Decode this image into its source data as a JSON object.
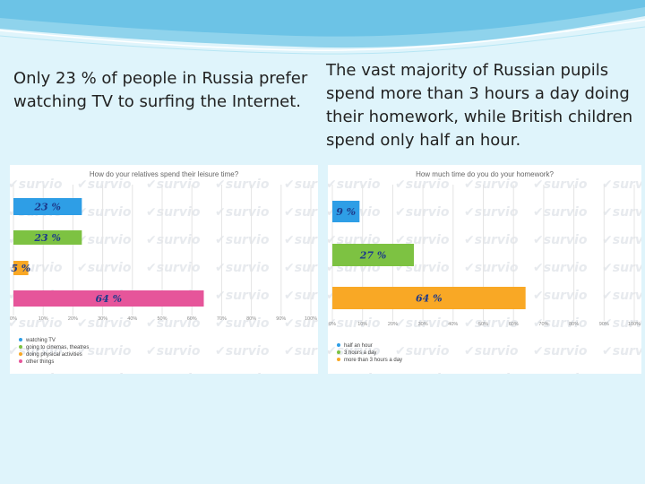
{
  "captions": {
    "left": "Only 23 % of people in Russia prefer watching TV to surfing the Internet.",
    "right": "The vast majority of Russian pupils spend more than 3 hours a day doing their homework, while British children spend only half an hour."
  },
  "watermark": "survio",
  "colors": {
    "blue": "#2e9ee6",
    "green": "#7dc242",
    "orange": "#f9a825",
    "pink": "#e6559a"
  },
  "chart_data": [
    {
      "type": "bar",
      "orientation": "horizontal",
      "title": "How do your relatives spend their leisure time?",
      "categories": [
        "watching TV",
        "going to cinemas, theatres",
        "doing physical activities",
        "other things"
      ],
      "values": [
        23,
        23,
        5,
        64
      ],
      "value_labels": [
        "23 %",
        "23 %",
        "5 %",
        "64 %"
      ],
      "colors": [
        "#2e9ee6",
        "#7dc242",
        "#f9a825",
        "#e6559a"
      ],
      "xlim": [
        0,
        100
      ],
      "xticks": [
        "0%",
        "10%",
        "20%",
        "30%",
        "40%",
        "50%",
        "60%",
        "70%",
        "80%",
        "90%",
        "100%"
      ],
      "grid": true,
      "legend": "bottom-left"
    },
    {
      "type": "bar",
      "orientation": "horizontal",
      "title": "How much time do you do your homework?",
      "categories": [
        "half an hour",
        "3 hours a day",
        "more than 3 hours a day"
      ],
      "values": [
        9,
        27,
        64
      ],
      "value_labels": [
        "9 %",
        "27 %",
        "64 %"
      ],
      "colors": [
        "#2e9ee6",
        "#7dc242",
        "#f9a825"
      ],
      "xlim": [
        0,
        100
      ],
      "xticks": [
        "0%",
        "10%",
        "20%",
        "30%",
        "40%",
        "50%",
        "60%",
        "70%",
        "80%",
        "90%",
        "100%"
      ],
      "grid": true,
      "legend": "bottom-left"
    }
  ]
}
